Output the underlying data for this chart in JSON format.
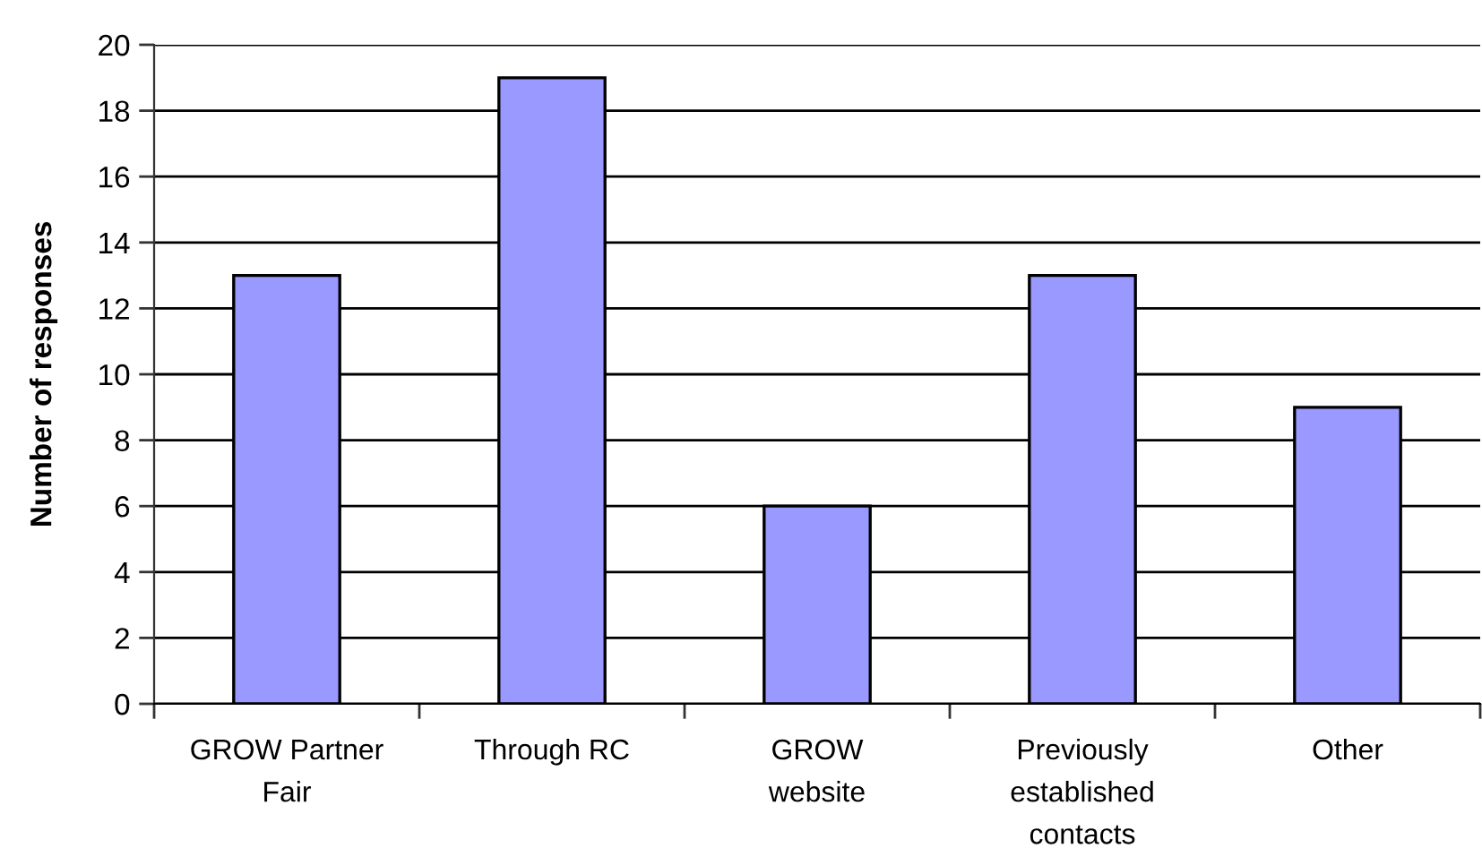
{
  "chart_data": {
    "type": "bar",
    "ylabel": "Number of responses",
    "categories": [
      "GROW Partner\nFair",
      "Through RC",
      "GROW\nwebsite",
      "Previously\nestablished\ncontacts",
      "Other"
    ],
    "values": [
      13,
      19,
      6,
      13,
      9
    ],
    "color": "#9999ff",
    "ylim": [
      0,
      20
    ],
    "yticks": [
      0,
      2,
      4,
      6,
      8,
      10,
      12,
      14,
      16,
      18,
      20
    ],
    "grid": "y"
  }
}
